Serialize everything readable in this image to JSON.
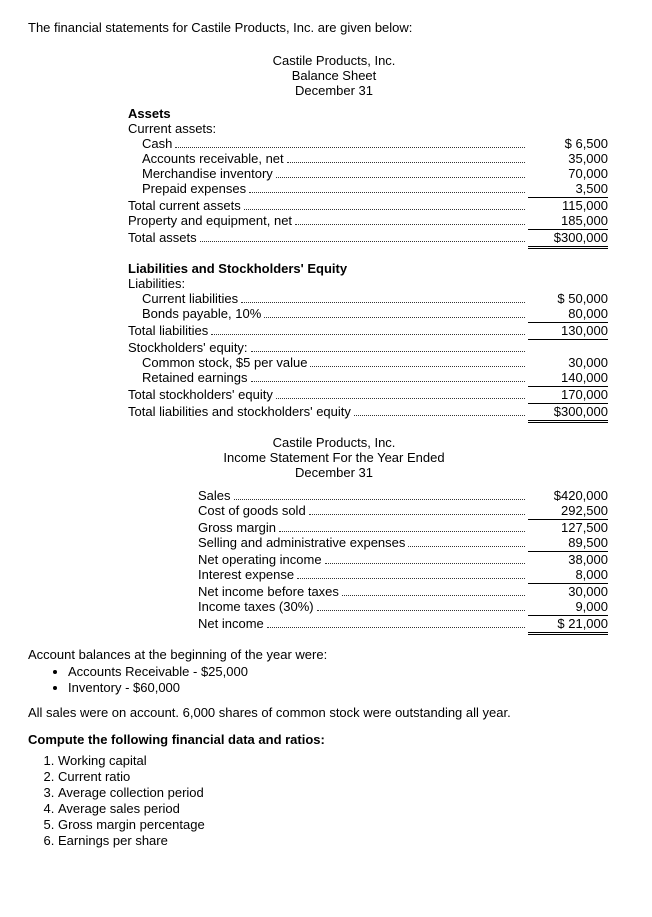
{
  "intro": "The financial statements for Castile Products, Inc. are given below:",
  "bs_header": {
    "company": "Castile Products, Inc.",
    "title": "Balance Sheet",
    "date": "December 31"
  },
  "bs": {
    "assets_heading": "Assets",
    "current_assets_label": "Current assets:",
    "cash_label": "Cash",
    "cash_value": "$   6,500",
    "ar_label": "Accounts receivable, net",
    "ar_value": "35,000",
    "inv_label": "Merchandise inventory",
    "inv_value": "70,000",
    "prepaid_label": "Prepaid expenses",
    "prepaid_value": "3,500",
    "tca_label": "Total current assets",
    "tca_value": "115,000",
    "ppe_label": "Property and equipment, net",
    "ppe_value": "185,000",
    "ta_label": "Total assets",
    "ta_value": "$300,000",
    "liab_heading": "Liabilities and Stockholders' Equity",
    "liab_label": "Liabilities:",
    "cl_label": "Current liabilities",
    "cl_value": "$ 50,000",
    "bonds_label": "Bonds payable, 10%",
    "bonds_value": "80,000",
    "tl_label": "Total liabilities",
    "tl_value": "130,000",
    "se_label": "Stockholders' equity:",
    "common_label": "Common stock, $5 per value",
    "common_value": "30,000",
    "re_label": "Retained earnings",
    "re_value": "140,000",
    "tse_label": "Total stockholders' equity",
    "tse_value": "170,000",
    "tle_label": "Total liabilities and stockholders' equity",
    "tle_value": "$300,000"
  },
  "is_header": {
    "company": "Castile Products, Inc.",
    "title": "Income Statement For the Year Ended",
    "date": "December 31"
  },
  "is": {
    "sales_label": "Sales",
    "sales_value": "$420,000",
    "cogs_label": "Cost of goods sold",
    "cogs_value": "292,500",
    "gm_label": "Gross margin",
    "gm_value": "127,500",
    "sa_label": "Selling and administrative expenses",
    "sa_value": "89,500",
    "noi_label": "Net operating income",
    "noi_value": "38,000",
    "ie_label": "Interest expense",
    "ie_value": "8,000",
    "nibt_label": "Net income before taxes",
    "nibt_value": "30,000",
    "tax_label": "Income taxes (30%)",
    "tax_value": "9,000",
    "ni_label": "Net income",
    "ni_value": "$  21,000"
  },
  "beginning_text": "Account balances at the beginning of the year were:",
  "bullets": {
    "b1": "Accounts Receivable - $25,000",
    "b2": "Inventory - $60,000"
  },
  "all_sales_text": "All sales were on account. 6,000 shares of common stock were outstanding all year.",
  "compute_heading": "Compute the following financial data and ratios:",
  "ratios": {
    "r1": "Working capital",
    "r2": "Current ratio",
    "r3": "Average collection period",
    "r4": "Average sales period",
    "r5": "Gross margin percentage",
    "r6": "Earnings per share"
  }
}
